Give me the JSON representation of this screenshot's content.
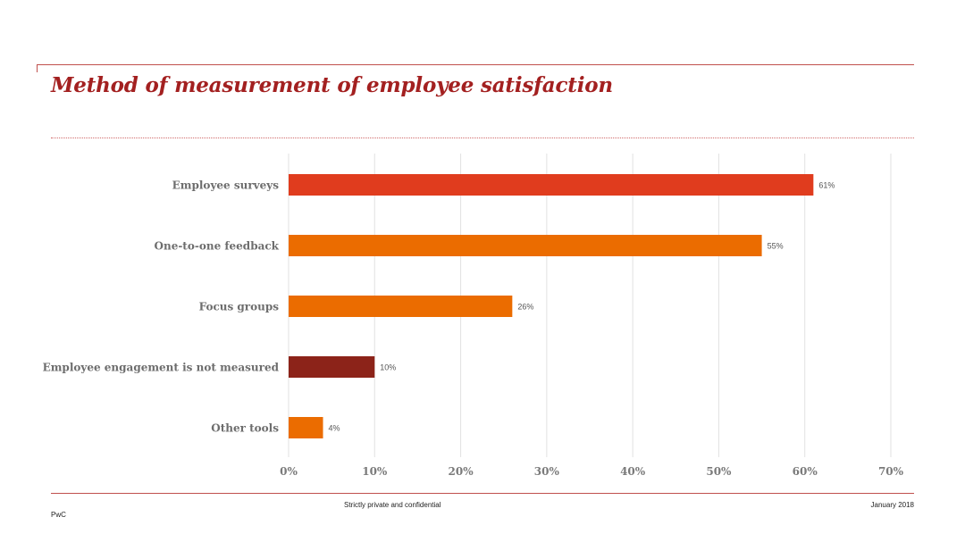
{
  "slide": {
    "title": "Method of measurement of employee satisfaction"
  },
  "footer": {
    "confidentiality": "Strictly private and confidential",
    "date": "January 2018",
    "brand": "PwC"
  },
  "colors": {
    "title": "#a32020",
    "rule": "#c0504d",
    "bar_red": "#e03c1e",
    "bar_orange": "#eb6c00",
    "bar_dark": "#8c2319",
    "gridline": "#e2e2e2",
    "category_label": "#6d6d6d"
  },
  "chart_data": {
    "type": "bar",
    "orientation": "horizontal",
    "title": "",
    "xlabel": "",
    "ylabel": "",
    "categories": [
      "Employee surveys",
      "One-to-one feedback",
      "Focus groups",
      "Employee engagement is not measured",
      "Other tools"
    ],
    "values": [
      61,
      55,
      26,
      10,
      4
    ],
    "value_labels": [
      "61%",
      "55%",
      "26%",
      "10%",
      "4%"
    ],
    "bar_colors": [
      "#e03c1e",
      "#eb6c00",
      "#eb6c00",
      "#8c2319",
      "#eb6c00"
    ],
    "xlim": [
      0,
      70
    ],
    "xticks": [
      0,
      10,
      20,
      30,
      40,
      50,
      60,
      70
    ],
    "xtick_labels": [
      "0%",
      "10%",
      "20%",
      "30%",
      "40%",
      "50%",
      "60%",
      "70%"
    ],
    "grid": true,
    "legend": "none"
  }
}
